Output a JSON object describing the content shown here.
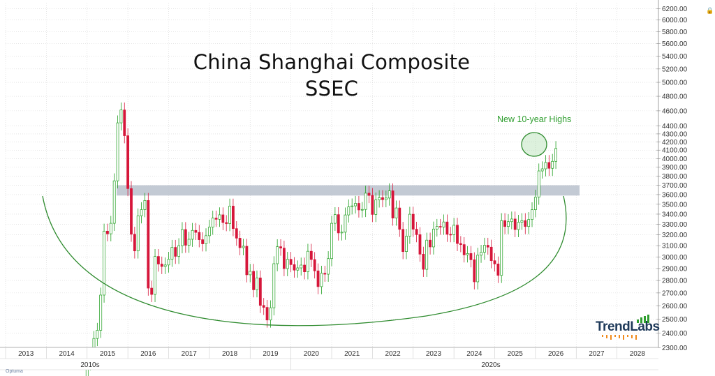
{
  "title": {
    "line1": "China Shanghai Composite",
    "line2": "SSEC"
  },
  "annotation": "New 10-year Highs",
  "brand": {
    "text1": "Trend",
    "text2": "Labs",
    "bar_color": "#f08a1c"
  },
  "footer_logo": "Optuma",
  "colors": {
    "up": "#1e9e1e",
    "down": "#d6163a",
    "resistance_band": "#bcc4cf",
    "cup_arc": "#2e8b2e",
    "grid": "#d5d5d5",
    "annotation": "#2f9e2f"
  },
  "chart_data": {
    "type": "candlestick",
    "title": "China Shanghai Composite SSEC",
    "y_ticks": [
      2300,
      2400,
      2500,
      2600,
      2700,
      2800,
      2900,
      3000,
      3100,
      3200,
      3300,
      3400,
      3500,
      3600,
      3700,
      3800,
      3900,
      4000,
      4100,
      4200,
      4300,
      4400,
      4600,
      4800,
      5000,
      5200,
      5400,
      5600,
      5800,
      6000,
      6200
    ],
    "y_tick_labels": [
      "2300.00",
      "2400.00",
      "2500.00",
      "2600.00",
      "2700.00",
      "2800.00",
      "2900.00",
      "3000.00",
      "3100.00",
      "3200.00",
      "3300.00",
      "3400.00",
      "3500.00",
      "3600.00",
      "3700.00",
      "3800.00",
      "3900.00",
      "4000.00",
      "4100.00",
      "4200.00",
      "4300.00",
      "4400.00",
      "4600.00",
      "4800.00",
      "5000.00",
      "5200.00",
      "5400.00",
      "5600.00",
      "5800.00",
      "6000.00",
      "6200.00"
    ],
    "y_scale": "log",
    "ylim": [
      2250,
      6250
    ],
    "x_years": [
      "2013",
      "2014",
      "2015",
      "2016",
      "2017",
      "2018",
      "2019",
      "2020",
      "2021",
      "2022",
      "2023",
      "2024",
      "2025",
      "2026",
      "2027",
      "2028"
    ],
    "decades": [
      "2010s",
      "2020s"
    ],
    "resistance_zone": [
      3590,
      3700
    ],
    "monthly_closes": [
      {
        "date": "2014-06",
        "value": 2048
      },
      {
        "date": "2014-07",
        "value": 2201
      },
      {
        "date": "2014-08",
        "value": 2217
      },
      {
        "date": "2014-09",
        "value": 2363
      },
      {
        "date": "2014-10",
        "value": 2420
      },
      {
        "date": "2014-11",
        "value": 2683
      },
      {
        "date": "2014-12",
        "value": 3235
      },
      {
        "date": "2015-01",
        "value": 3210
      },
      {
        "date": "2015-02",
        "value": 3310
      },
      {
        "date": "2015-03",
        "value": 3748
      },
      {
        "date": "2015-04",
        "value": 4441
      },
      {
        "date": "2015-05",
        "value": 4612
      },
      {
        "date": "2015-06",
        "value": 4277
      },
      {
        "date": "2015-07",
        "value": 3664
      },
      {
        "date": "2015-08",
        "value": 3206
      },
      {
        "date": "2015-09",
        "value": 3053
      },
      {
        "date": "2015-10",
        "value": 3383
      },
      {
        "date": "2015-11",
        "value": 3445
      },
      {
        "date": "2015-12",
        "value": 3539
      },
      {
        "date": "2016-01",
        "value": 2738
      },
      {
        "date": "2016-02",
        "value": 2688
      },
      {
        "date": "2016-03",
        "value": 3004
      },
      {
        "date": "2016-04",
        "value": 2938
      },
      {
        "date": "2016-05",
        "value": 2917
      },
      {
        "date": "2016-06",
        "value": 2930
      },
      {
        "date": "2016-07",
        "value": 2979
      },
      {
        "date": "2016-08",
        "value": 3085
      },
      {
        "date": "2016-09",
        "value": 3005
      },
      {
        "date": "2016-10",
        "value": 3100
      },
      {
        "date": "2016-11",
        "value": 3250
      },
      {
        "date": "2016-12",
        "value": 3104
      },
      {
        "date": "2017-01",
        "value": 3159
      },
      {
        "date": "2017-02",
        "value": 3242
      },
      {
        "date": "2017-03",
        "value": 3223
      },
      {
        "date": "2017-04",
        "value": 3155
      },
      {
        "date": "2017-05",
        "value": 3117
      },
      {
        "date": "2017-06",
        "value": 3192
      },
      {
        "date": "2017-07",
        "value": 3273
      },
      {
        "date": "2017-08",
        "value": 3361
      },
      {
        "date": "2017-09",
        "value": 3349
      },
      {
        "date": "2017-10",
        "value": 3393
      },
      {
        "date": "2017-11",
        "value": 3317
      },
      {
        "date": "2017-12",
        "value": 3307
      },
      {
        "date": "2018-01",
        "value": 3481
      },
      {
        "date": "2018-02",
        "value": 3259
      },
      {
        "date": "2018-03",
        "value": 3169
      },
      {
        "date": "2018-04",
        "value": 3082
      },
      {
        "date": "2018-05",
        "value": 3095
      },
      {
        "date": "2018-06",
        "value": 2847
      },
      {
        "date": "2018-07",
        "value": 2876
      },
      {
        "date": "2018-08",
        "value": 2725
      },
      {
        "date": "2018-09",
        "value": 2821
      },
      {
        "date": "2018-10",
        "value": 2603
      },
      {
        "date": "2018-11",
        "value": 2588
      },
      {
        "date": "2018-12",
        "value": 2494
      },
      {
        "date": "2019-01",
        "value": 2585
      },
      {
        "date": "2019-02",
        "value": 2941
      },
      {
        "date": "2019-03",
        "value": 3091
      },
      {
        "date": "2019-04",
        "value": 3078
      },
      {
        "date": "2019-05",
        "value": 2899
      },
      {
        "date": "2019-06",
        "value": 2979
      },
      {
        "date": "2019-07",
        "value": 2933
      },
      {
        "date": "2019-08",
        "value": 2886
      },
      {
        "date": "2019-09",
        "value": 2905
      },
      {
        "date": "2019-10",
        "value": 2929
      },
      {
        "date": "2019-11",
        "value": 2872
      },
      {
        "date": "2019-12",
        "value": 3050
      },
      {
        "date": "2020-01",
        "value": 2977
      },
      {
        "date": "2020-02",
        "value": 2880
      },
      {
        "date": "2020-03",
        "value": 2750
      },
      {
        "date": "2020-04",
        "value": 2860
      },
      {
        "date": "2020-05",
        "value": 2852
      },
      {
        "date": "2020-06",
        "value": 2985
      },
      {
        "date": "2020-07",
        "value": 3310
      },
      {
        "date": "2020-08",
        "value": 3395
      },
      {
        "date": "2020-09",
        "value": 3218
      },
      {
        "date": "2020-10",
        "value": 3225
      },
      {
        "date": "2020-11",
        "value": 3392
      },
      {
        "date": "2020-12",
        "value": 3473
      },
      {
        "date": "2021-01",
        "value": 3483
      },
      {
        "date": "2021-02",
        "value": 3509
      },
      {
        "date": "2021-03",
        "value": 3442
      },
      {
        "date": "2021-04",
        "value": 3447
      },
      {
        "date": "2021-05",
        "value": 3615
      },
      {
        "date": "2021-06",
        "value": 3591
      },
      {
        "date": "2021-07",
        "value": 3397
      },
      {
        "date": "2021-08",
        "value": 3544
      },
      {
        "date": "2021-09",
        "value": 3568
      },
      {
        "date": "2021-10",
        "value": 3547
      },
      {
        "date": "2021-11",
        "value": 3564
      },
      {
        "date": "2021-12",
        "value": 3640
      },
      {
        "date": "2022-01",
        "value": 3361
      },
      {
        "date": "2022-02",
        "value": 3462
      },
      {
        "date": "2022-03",
        "value": 3252
      },
      {
        "date": "2022-04",
        "value": 3047
      },
      {
        "date": "2022-05",
        "value": 3187
      },
      {
        "date": "2022-06",
        "value": 3399
      },
      {
        "date": "2022-07",
        "value": 3253
      },
      {
        "date": "2022-08",
        "value": 3202
      },
      {
        "date": "2022-09",
        "value": 3024
      },
      {
        "date": "2022-10",
        "value": 2893
      },
      {
        "date": "2022-11",
        "value": 3151
      },
      {
        "date": "2022-12",
        "value": 3089
      },
      {
        "date": "2023-01",
        "value": 3255
      },
      {
        "date": "2023-02",
        "value": 3280
      },
      {
        "date": "2023-03",
        "value": 3273
      },
      {
        "date": "2023-04",
        "value": 3323
      },
      {
        "date": "2023-05",
        "value": 3205
      },
      {
        "date": "2023-06",
        "value": 3202
      },
      {
        "date": "2023-07",
        "value": 3291
      },
      {
        "date": "2023-08",
        "value": 3120
      },
      {
        "date": "2023-09",
        "value": 3110
      },
      {
        "date": "2023-10",
        "value": 3018
      },
      {
        "date": "2023-11",
        "value": 3030
      },
      {
        "date": "2023-12",
        "value": 2975
      },
      {
        "date": "2024-01",
        "value": 2789
      },
      {
        "date": "2024-02",
        "value": 3015
      },
      {
        "date": "2024-03",
        "value": 3041
      },
      {
        "date": "2024-04",
        "value": 3104
      },
      {
        "date": "2024-05",
        "value": 3087
      },
      {
        "date": "2024-06",
        "value": 2967
      },
      {
        "date": "2024-07",
        "value": 2939
      },
      {
        "date": "2024-08",
        "value": 2842
      },
      {
        "date": "2024-09",
        "value": 3336
      },
      {
        "date": "2024-10",
        "value": 3279
      },
      {
        "date": "2024-11",
        "value": 3326
      },
      {
        "date": "2024-12",
        "value": 3352
      },
      {
        "date": "2025-01",
        "value": 3250
      },
      {
        "date": "2025-02",
        "value": 3320
      },
      {
        "date": "2025-03",
        "value": 3336
      },
      {
        "date": "2025-04",
        "value": 3279
      },
      {
        "date": "2025-05",
        "value": 3347
      },
      {
        "date": "2025-06",
        "value": 3444
      },
      {
        "date": "2025-07",
        "value": 3573
      },
      {
        "date": "2025-08",
        "value": 3858
      },
      {
        "date": "2025-09",
        "value": 3882
      },
      {
        "date": "2025-10",
        "value": 3955
      },
      {
        "date": "2025-11",
        "value": 3888
      },
      {
        "date": "2025-12",
        "value": 3968
      },
      {
        "date": "2026-01",
        "value": 4120
      }
    ]
  }
}
